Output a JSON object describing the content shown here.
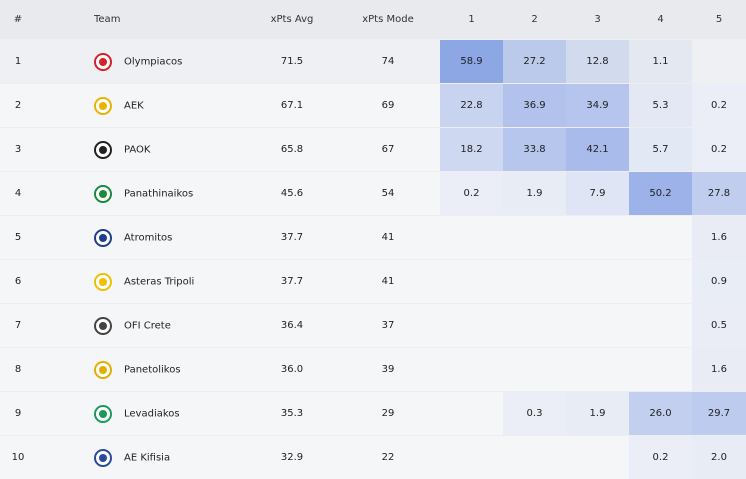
{
  "table": {
    "header": [
      "#",
      "Team",
      "xPts Avg",
      "xPts Mode",
      "1",
      "2",
      "3",
      "4",
      "5"
    ],
    "rows": [
      [
        "1",
        "Olympiacos",
        "71.5",
        "74",
        "58.9",
        "27.2",
        "12.8",
        "1.1",
        null
      ],
      [
        "2",
        "AEK",
        "67.1",
        "69",
        "22.8",
        "36.9",
        "34.9",
        "5.3",
        "0.2"
      ],
      [
        "3",
        "PAOK",
        "65.8",
        "67",
        "18.2",
        "33.8",
        "42.1",
        "5.7",
        "0.2"
      ],
      [
        "4",
        "Panathinaikos",
        "45.6",
        "54",
        "0.2",
        "1.9",
        "7.9",
        "50.2",
        "27.8"
      ],
      [
        "5",
        "Atromitos",
        "37.7",
        "41",
        null,
        null,
        null,
        null,
        "1.6"
      ],
      [
        "6",
        "Asteras Tripoli",
        "37.7",
        "41",
        null,
        null,
        null,
        null,
        "0.9"
      ],
      [
        "7",
        "OFI Crete",
        "36.4",
        "37",
        null,
        null,
        null,
        null,
        "0.5"
      ],
      [
        "8",
        "Panetolikos",
        "36.0",
        "39",
        null,
        null,
        null,
        null,
        "1.6"
      ],
      [
        "9",
        "Levadiakos",
        "35.3",
        "29",
        null,
        "0.3",
        "1.9",
        "26.0",
        "29.7"
      ],
      [
        "10",
        "AE Kifisia",
        "32.9",
        "22",
        null,
        null,
        null,
        "0.2",
        "2.0"
      ]
    ]
  }
}
